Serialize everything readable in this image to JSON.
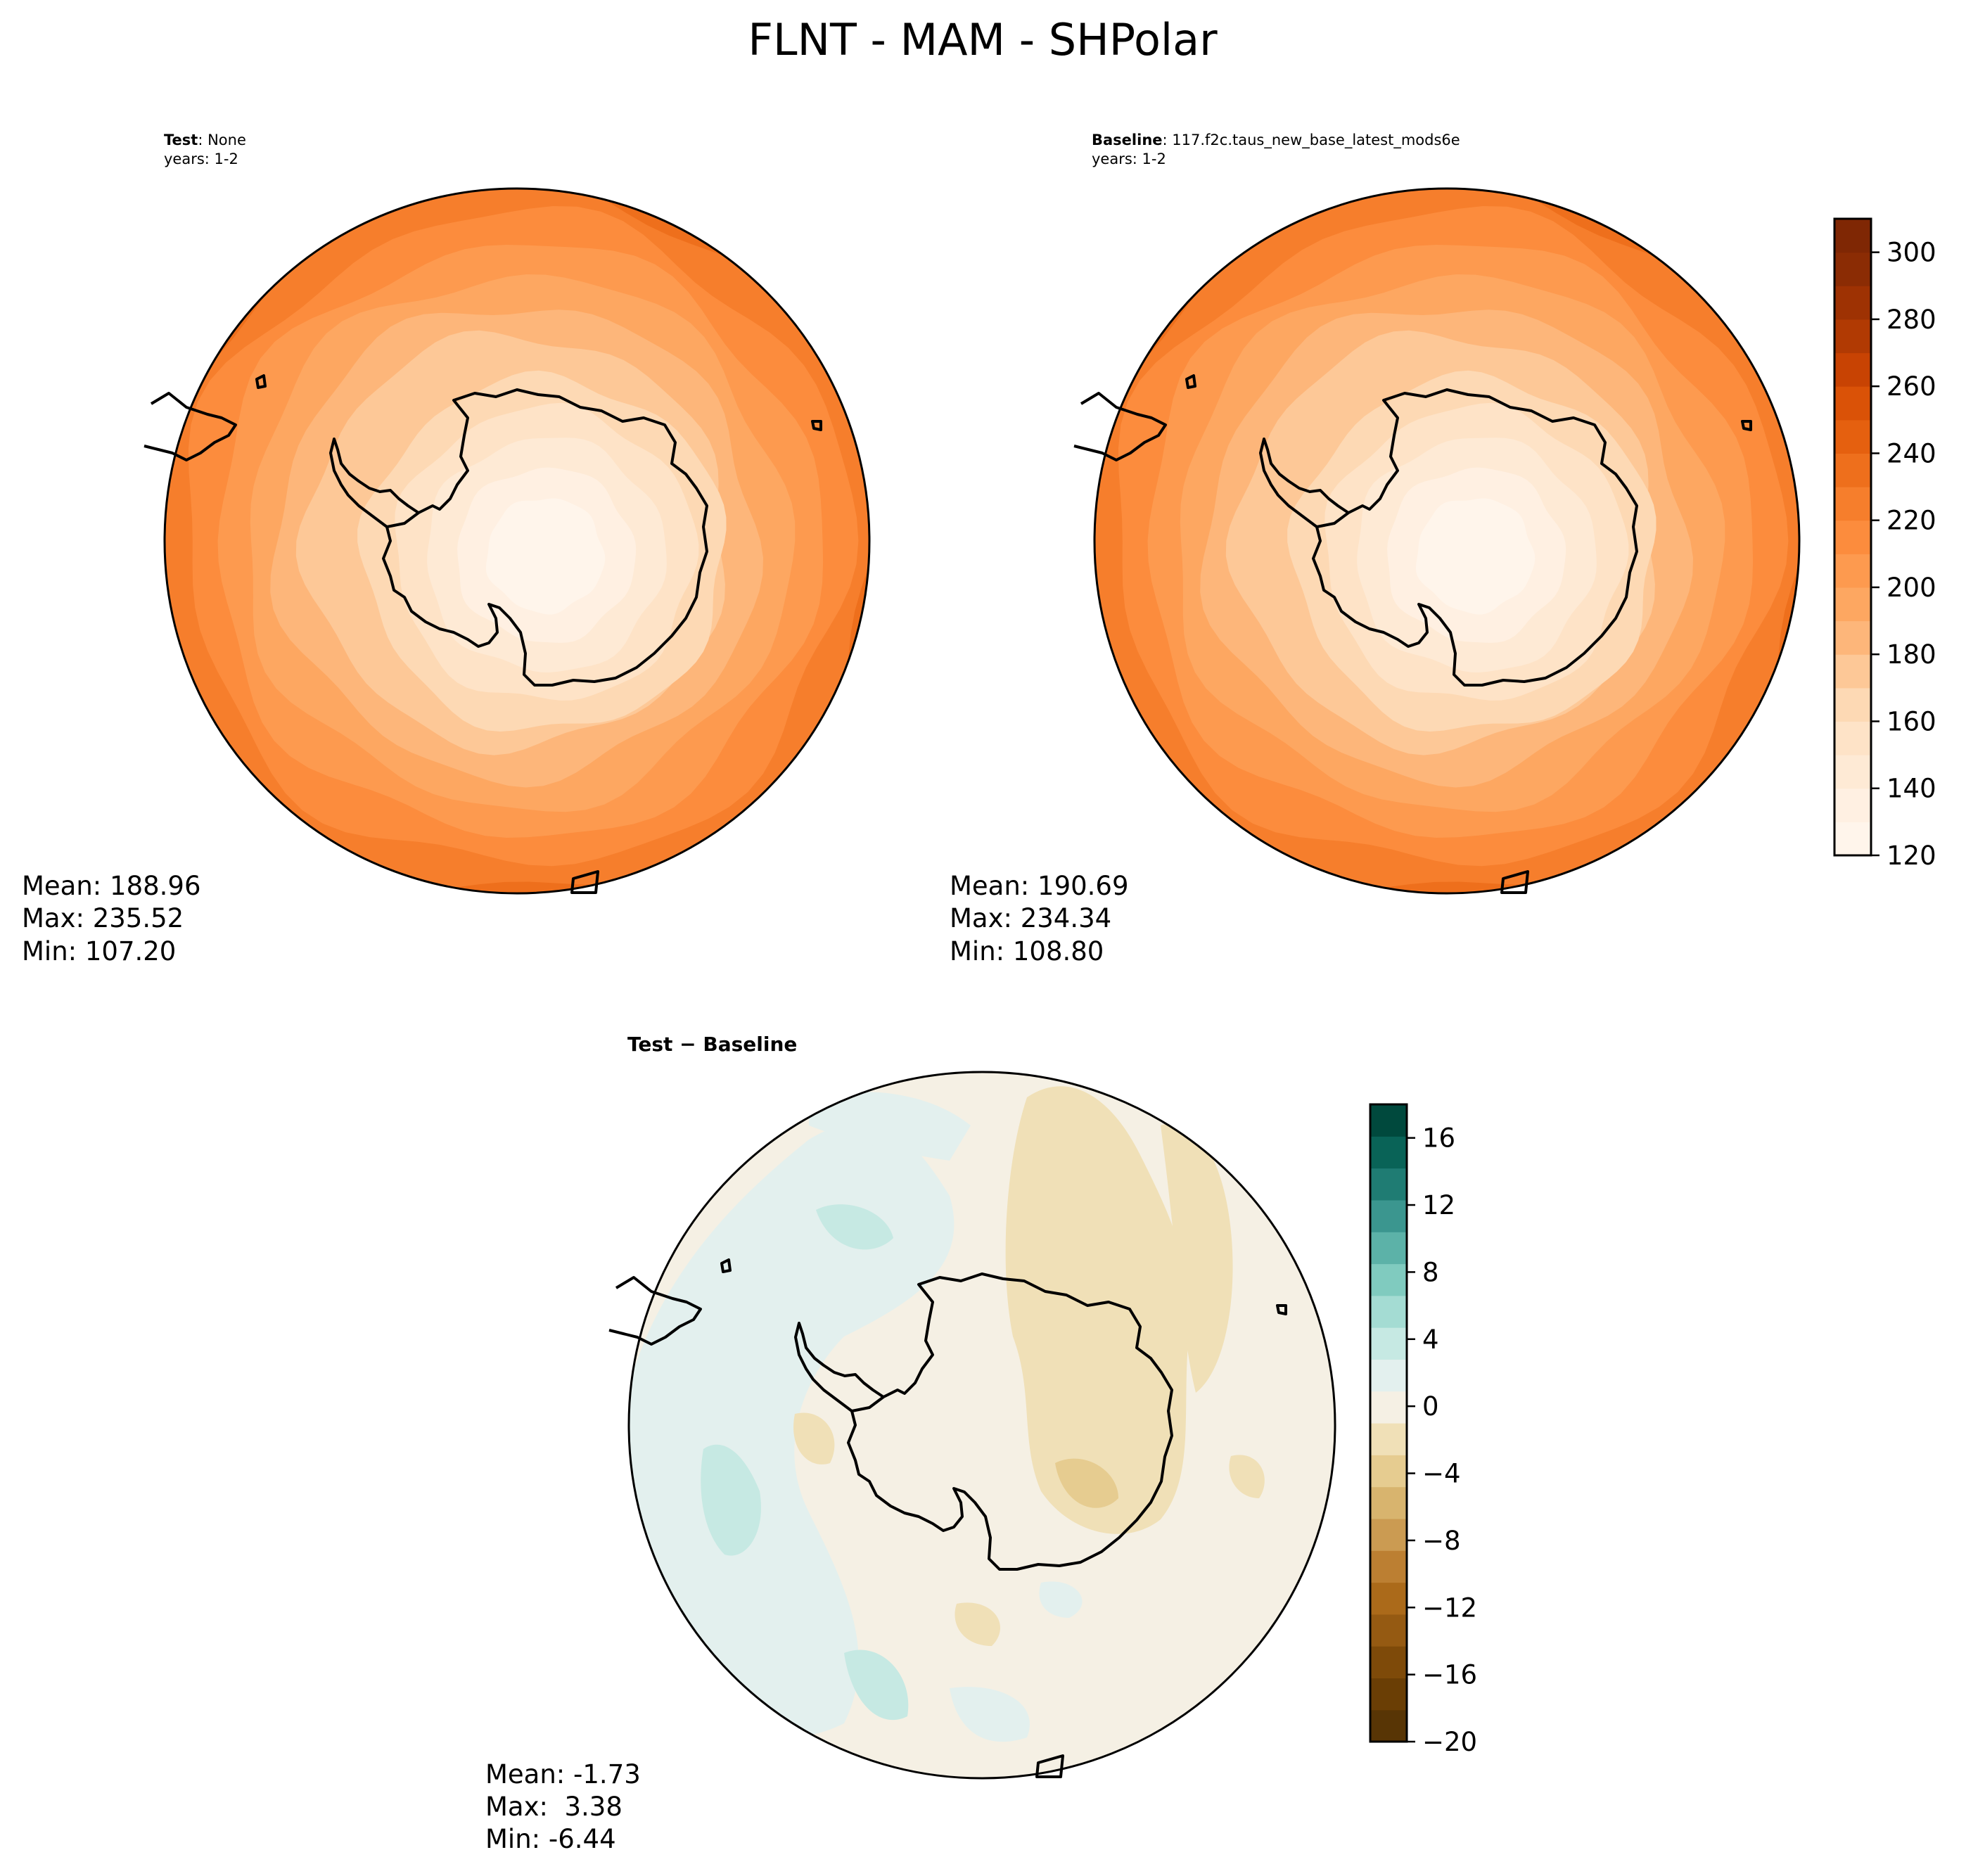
{
  "title": "FLNT - MAM - SHPolar",
  "panels": {
    "test": {
      "label_bold": "Test",
      "label_rest": ": None",
      "years": "years: 1-2",
      "stats": {
        "mean": "Mean: 188.96",
        "max": "Max: 235.52",
        "min": "Min: 107.20"
      }
    },
    "baseline": {
      "label_bold": "Baseline",
      "label_rest": ": 117.f2c.taus_new_base_latest_mods6e",
      "years": "years: 1-2",
      "stats": {
        "mean": "Mean: 190.69",
        "max": "Max: 234.34",
        "min": "Min: 108.80"
      }
    },
    "diff": {
      "label": "Test − Baseline",
      "stats": {
        "mean": "Mean: -1.73",
        "max": "Max:  3.38",
        "min": "Min: -6.44"
      }
    }
  },
  "chart_data": [
    {
      "type": "heatmap",
      "name": "Test: None",
      "projection": "south-polar-stereographic",
      "colorbar": {
        "range": [
          120,
          310
        ],
        "step": 10,
        "ticks": [
          "120",
          "140",
          "160",
          "180",
          "200",
          "220",
          "240",
          "260",
          "280",
          "300"
        ],
        "cmap": "Oranges"
      },
      "stats": {
        "mean": 188.96,
        "max": 235.52,
        "min": 107.2
      },
      "field_description": "value increases with distance from the pole",
      "contour_levels": [
        {
          "value": 120,
          "color": "#fff5eb"
        },
        {
          "value": 130,
          "color": "#fff0e2"
        },
        {
          "value": 140,
          "color": "#feead5"
        },
        {
          "value": 150,
          "color": "#fee3c7"
        },
        {
          "value": 160,
          "color": "#fdd9b4"
        },
        {
          "value": 170,
          "color": "#fdc897"
        },
        {
          "value": 180,
          "color": "#fdb67a"
        },
        {
          "value": 190,
          "color": "#fda761"
        },
        {
          "value": 200,
          "color": "#fd9a4f"
        },
        {
          "value": 210,
          "color": "#fc8c3d"
        },
        {
          "value": 220,
          "color": "#f67e2c"
        },
        {
          "value": 230,
          "color": "#ee6f1c"
        }
      ]
    },
    {
      "type": "heatmap",
      "name": "Baseline: 117.f2c.taus_new_base_latest_mods6e",
      "projection": "south-polar-stereographic",
      "colorbar": {
        "range": [
          120,
          310
        ],
        "step": 10,
        "ticks": [
          "120",
          "140",
          "160",
          "180",
          "200",
          "220",
          "240",
          "260",
          "280",
          "300"
        ],
        "cmap": "Oranges"
      },
      "stats": {
        "mean": 190.69,
        "max": 234.34,
        "min": 108.8
      },
      "field_description": "value increases with distance from the pole",
      "contour_levels": [
        {
          "value": 120,
          "color": "#fff5eb"
        },
        {
          "value": 130,
          "color": "#fff0e2"
        },
        {
          "value": 140,
          "color": "#feead5"
        },
        {
          "value": 150,
          "color": "#fee3c7"
        },
        {
          "value": 160,
          "color": "#fdd9b4"
        },
        {
          "value": 170,
          "color": "#fdc897"
        },
        {
          "value": 180,
          "color": "#fdb67a"
        },
        {
          "value": 190,
          "color": "#fda761"
        },
        {
          "value": 200,
          "color": "#fd9a4f"
        },
        {
          "value": 210,
          "color": "#fc8c3d"
        },
        {
          "value": 220,
          "color": "#f67e2c"
        },
        {
          "value": 230,
          "color": "#ee6f1c"
        }
      ]
    },
    {
      "type": "heatmap",
      "name": "Test − Baseline",
      "projection": "south-polar-stereographic",
      "colorbar": {
        "range": [
          -20,
          18
        ],
        "step": 2,
        "ticks": [
          "−20",
          "−16",
          "−12",
          "−8",
          "−4",
          "0",
          "4",
          "8",
          "12",
          "16"
        ],
        "cmap": "BrBG"
      },
      "stats": {
        "mean": -1.73,
        "max": 3.38,
        "min": -6.44
      },
      "field_description": "mostly between -4 and 2; positive anomalies over the Pacific sector, negative over East Antarctica"
    }
  ],
  "colors": {
    "oranges_scale": [
      "#fff5eb",
      "#fff0e2",
      "#feead5",
      "#fee3c7",
      "#fdd9b4",
      "#fdc897",
      "#fdb67a",
      "#fda761",
      "#fd9a4f",
      "#fc8c3d",
      "#f67e2c",
      "#ee6f1c",
      "#e5600f",
      "#da5207",
      "#c84303",
      "#b13a03",
      "#9e3203",
      "#8b2c04",
      "#7f2704"
    ],
    "brbg_scale": [
      "#583505",
      "#6a3e05",
      "#7e4a09",
      "#955a12",
      "#ab6a1a",
      "#bc7f32",
      "#cb9b52",
      "#d8b46e",
      "#e6cc90",
      "#f0e0b7",
      "#f5f0e4",
      "#e3f0ee",
      "#c6e9e3",
      "#a4dcd3",
      "#80cbbf",
      "#5cb2a8",
      "#3b968f",
      "#1f7c73",
      "#096357",
      "#00493d"
    ],
    "coastline": "#000000"
  }
}
